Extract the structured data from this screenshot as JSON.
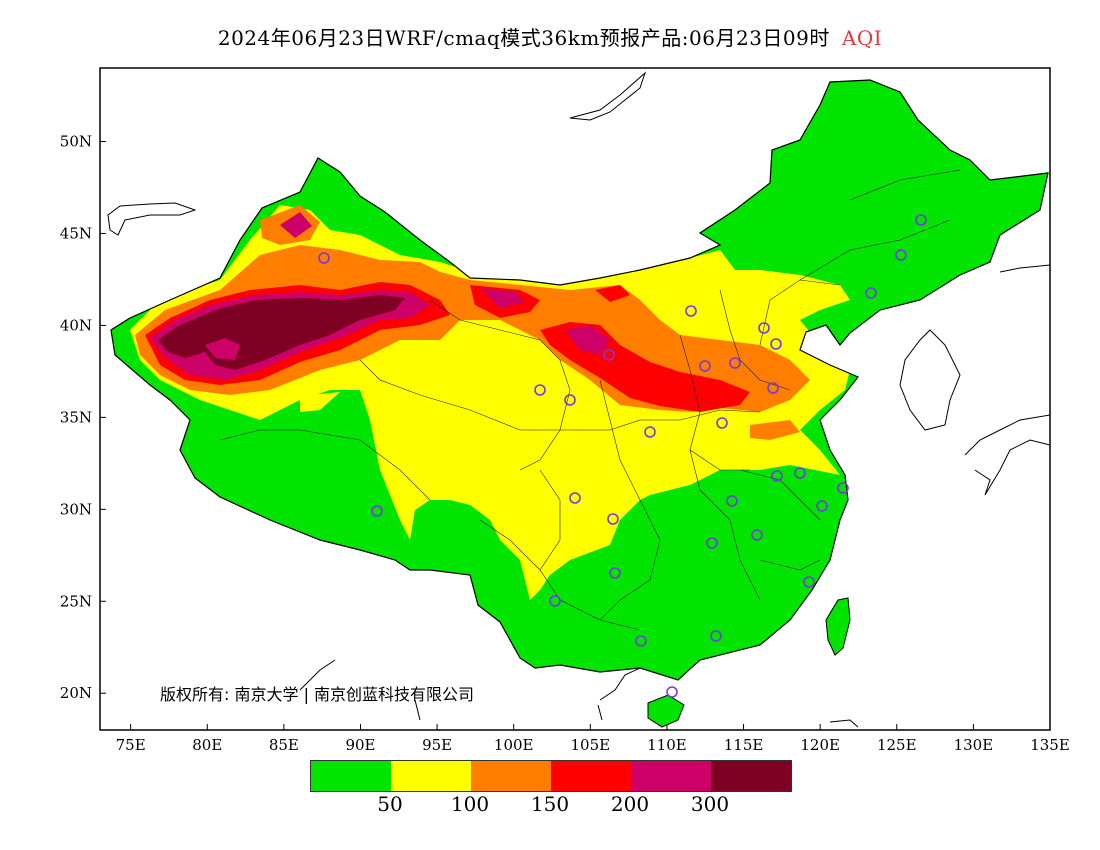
{
  "title": {
    "main": "2024年06月23日WRF/cmaq模式36km预报产品:06月23日09时",
    "variable": "AQI",
    "variable_color": "#e0393e"
  },
  "map": {
    "lon_range": [
      73,
      135
    ],
    "lat_range": [
      18,
      54
    ],
    "lon_ticks": [
      "75E",
      "80E",
      "85E",
      "90E",
      "95E",
      "100E",
      "105E",
      "110E",
      "115E",
      "120E",
      "125E",
      "130E",
      "135E"
    ],
    "lat_ticks": [
      "20N",
      "25N",
      "30N",
      "35N",
      "40N",
      "45N",
      "50N"
    ]
  },
  "colors": {
    "green": "#00e400",
    "yellow": "#ffff00",
    "orange": "#ff7e00",
    "red": "#ff0000",
    "purple": "#cc0066",
    "maroon": "#7e0023"
  },
  "copyright": "版权所有: 南京大学 | 南京创蓝科技有限公司",
  "legend": {
    "colors": [
      "#00e400",
      "#ffff00",
      "#ff7e00",
      "#ff0000",
      "#cc0066",
      "#7e0023"
    ],
    "labels": [
      "50",
      "100",
      "150",
      "200",
      "300"
    ]
  },
  "stations_icon": "circle-marker-icon"
}
